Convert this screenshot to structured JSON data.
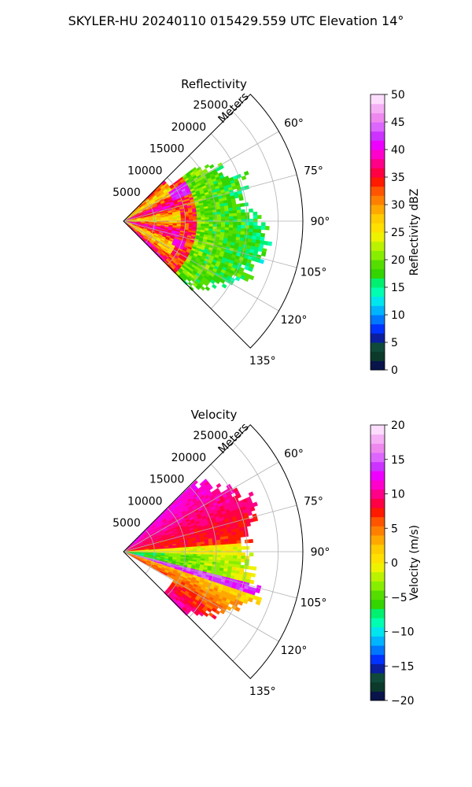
{
  "figure": {
    "title": "SKYLER-HU  20240110  015429.559 UTC Elevation 14°"
  },
  "chart_data": [
    {
      "type": "heatmap",
      "title": "Reflectivity",
      "polar": true,
      "range_label": "Meters",
      "range_ticks": [
        5000,
        10000,
        15000,
        20000,
        25000
      ],
      "range_ticks_text": [
        "5000",
        "10000",
        "15000",
        "20000",
        "25000"
      ],
      "theta_ticks": [
        60,
        75,
        90,
        105,
        120,
        135
      ],
      "theta_ticks_text": [
        "60°",
        "75°",
        "90°",
        "105°",
        "120°",
        "135°"
      ],
      "theta_range": [
        45,
        135
      ],
      "range_max": 29000,
      "colorbar": {
        "label": "Reflectivity dBZ",
        "range": [
          0,
          50
        ],
        "ticks_text": [
          "0",
          "5",
          "10",
          "15",
          "20",
          "25",
          "30",
          "35",
          "40",
          "45",
          "50"
        ],
        "palette": [
          "#08144a",
          "#0b3a2b",
          "#0f4a3a",
          "#0a1e9e",
          "#0033ff",
          "#0077ff",
          "#00b4ff",
          "#00e5ee",
          "#00ffb0",
          "#00f070",
          "#33d400",
          "#55dd00",
          "#88ee00",
          "#bbf200",
          "#eef200",
          "#ffe000",
          "#ffcc00",
          "#ffa800",
          "#ff8000",
          "#ff5500",
          "#ff1a00",
          "#ff0044",
          "#ff0088",
          "#ff00cc",
          "#ee00ff",
          "#cc33ff",
          "#dd66ff",
          "#ee88ee",
          "#f5b0f5",
          "#fdddfd"
        ]
      },
      "field_description": "echo sector from 45° to 135°, strongest (30-40 dBZ) within 10 km, 15-25 dBZ out to ~20 km"
    },
    {
      "type": "heatmap",
      "title": "Velocity",
      "polar": true,
      "range_label": "Meters",
      "range_ticks": [
        5000,
        10000,
        15000,
        20000,
        25000
      ],
      "range_ticks_text": [
        "5000",
        "10000",
        "15000",
        "20000",
        "25000"
      ],
      "theta_ticks": [
        60,
        75,
        90,
        105,
        120,
        135
      ],
      "theta_ticks_text": [
        "60°",
        "75°",
        "90°",
        "105°",
        "120°",
        "135°"
      ],
      "theta_range": [
        45,
        135
      ],
      "range_max": 29000,
      "colorbar": {
        "label": "Velocity (m/s)",
        "range": [
          -20,
          20
        ],
        "ticks_text": [
          "−20",
          "−15",
          "−10",
          "−5",
          "0",
          "5",
          "10",
          "15",
          "20"
        ],
        "palette": [
          "#08144a",
          "#0b3a2b",
          "#0f4a3a",
          "#0a1e9e",
          "#0033ff",
          "#0077ff",
          "#00b4ff",
          "#00e5ee",
          "#00ffb0",
          "#00f070",
          "#33d400",
          "#55dd00",
          "#88ee00",
          "#bbf200",
          "#eef200",
          "#ffe000",
          "#ffcc00",
          "#ffa800",
          "#ff8000",
          "#ff5500",
          "#ff1a00",
          "#ff0044",
          "#ff0088",
          "#ff00cc",
          "#ee00ff",
          "#cc33ff",
          "#dd66ff",
          "#ee88ee",
          "#f5b0f5",
          "#fdddfd"
        ]
      },
      "field_description": "positive (5-10 m/s) north of ~90°, negative (-5 to -10 m/s) near 95-105°, positive 0-10 m/s to the south"
    }
  ]
}
